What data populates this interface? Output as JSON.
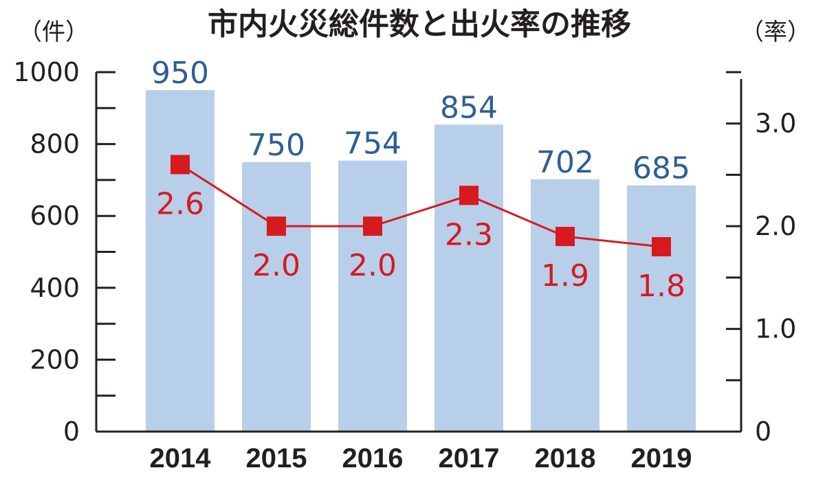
{
  "chart_data": {
    "type": "bar+line",
    "title": "市内火災総件数と出火率の推移",
    "y_left_unit": "（件）",
    "y_right_unit": "（率）",
    "categories": [
      "2014",
      "2015",
      "2016",
      "2017",
      "2018",
      "2019"
    ],
    "series": [
      {
        "type": "bar",
        "axis": "left",
        "values": [
          950,
          750,
          754,
          854,
          702,
          685
        ]
      },
      {
        "type": "line",
        "axis": "right",
        "values": [
          2.6,
          2.0,
          2.0,
          2.3,
          1.9,
          1.8
        ]
      }
    ],
    "y_left": {
      "min": 0,
      "max": 1000,
      "ticks": [
        "0",
        "200",
        "400",
        "600",
        "800",
        "1000"
      ],
      "minor_step": 100
    },
    "y_right": {
      "min": 0,
      "max": 3.5,
      "ticks": [
        "0",
        "1.0",
        "2.0",
        "3.0"
      ],
      "tick_values": [
        0,
        1,
        2,
        3
      ],
      "minor_step": 0.5
    },
    "bar_labels": [
      "950",
      "750",
      "754",
      "854",
      "702",
      "685"
    ],
    "line_labels": [
      "2.6",
      "2.0",
      "2.0",
      "2.3",
      "1.9",
      "1.8"
    ],
    "colors": {
      "bar": "#b8cfe9",
      "bar_label": "#2d5f93",
      "line": "#d71920",
      "axis": "#231f20"
    },
    "grid": false,
    "legend": "none"
  }
}
